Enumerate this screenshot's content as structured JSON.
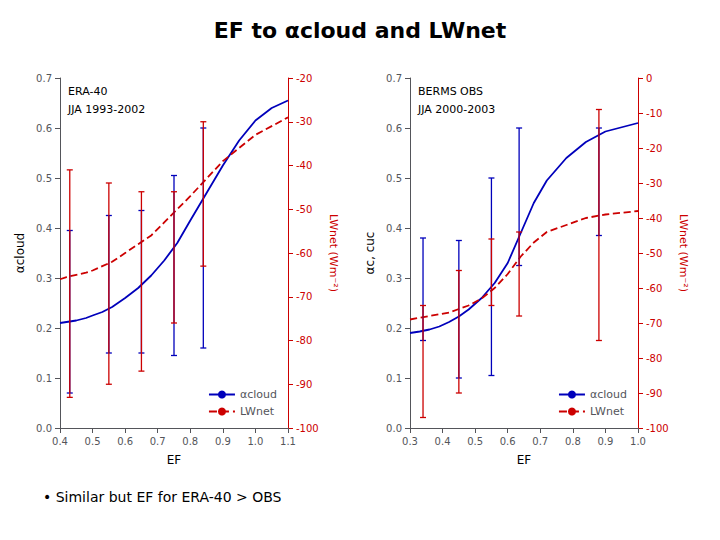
{
  "title": "EF to αcloud and LWnet",
  "annotations": [
    "• Similar but EF for ERA-40 > OBS"
  ],
  "chart_data": [
    {
      "type": "line",
      "annotations": [
        "ERA-40",
        "JJA 1993-2002"
      ],
      "xlabel": "EF",
      "ylabel": "αcloud",
      "y2label": "LWnet (Wm⁻²)",
      "xlim": [
        0.4,
        1.1
      ],
      "xticks": [
        0.4,
        0.5,
        0.6,
        0.7,
        0.8,
        0.9,
        {
          "value": 1.0,
          "label": "1.0"
        },
        1.1
      ],
      "ylim": [
        0.0,
        0.7
      ],
      "yticks": [
        {
          "value": 0,
          "label": "0.0"
        },
        0.1,
        0.2,
        0.3,
        0.4,
        0.5,
        0.6,
        0.7
      ],
      "y2lim": [
        -100,
        -20
      ],
      "y2ticks": [
        -100,
        -90,
        -80,
        -70,
        -60,
        -50,
        -40,
        -30,
        -20
      ],
      "grid": false,
      "legend": "lower right",
      "series": [
        {
          "name": "αcloud",
          "color": "#0000bb",
          "line_style": "solid",
          "x": [
            0.4,
            0.42,
            0.45,
            0.48,
            0.5,
            0.53,
            0.56,
            0.6,
            0.64,
            0.68,
            0.72,
            0.76,
            0.8,
            0.85,
            0.9,
            0.95,
            1.0,
            1.05,
            1.1
          ],
          "values": [
            0.21,
            0.212,
            0.215,
            0.22,
            0.225,
            0.232,
            0.242,
            0.26,
            0.28,
            0.305,
            0.335,
            0.37,
            0.415,
            0.47,
            0.525,
            0.575,
            0.615,
            0.64,
            0.655
          ],
          "error_bars": {
            "x": [
              0.43,
              0.55,
              0.65,
              0.75,
              0.84
            ],
            "y": [
              0.21,
              0.24,
              0.28,
              0.2,
              0.325
            ],
            "minus": [
              0.14,
              0.09,
              0.13,
              0.055,
              0.165
            ],
            "plus": [
              0.185,
              0.185,
              0.155,
              0.305,
              0.275
            ]
          }
        },
        {
          "name": "LWnet",
          "axis": "y2",
          "color": "#cc0000",
          "line_style": "dashed",
          "x": [
            0.4,
            0.42,
            0.45,
            0.48,
            0.5,
            0.53,
            0.56,
            0.6,
            0.64,
            0.68,
            0.72,
            0.76,
            0.8,
            0.85,
            0.9,
            0.95,
            1.0,
            1.05,
            1.1
          ],
          "values": [
            -66,
            -65.5,
            -65,
            -64.5,
            -64,
            -63,
            -62,
            -60,
            -58,
            -56,
            -53,
            -50,
            -47,
            -43,
            -39,
            -36,
            -33,
            -31,
            -29
          ],
          "error_bars": {
            "x": [
              0.43,
              0.55,
              0.65,
              0.75,
              0.84
            ],
            "y": [
              -67,
              -63,
              -58,
              -50,
              -47
            ],
            "minus": [
              26,
              27,
              29,
              26,
              16
            ],
            "plus": [
              26,
              19,
              12,
              4,
              17
            ]
          }
        }
      ]
    },
    {
      "type": "line",
      "annotations": [
        "BERMS OBS",
        "JJA 2000-2003"
      ],
      "xlabel": "EF",
      "ylabel": "αc, cuc",
      "y2label": "LWnet (Wm⁻²)",
      "xlim": [
        0.3,
        1.0
      ],
      "xticks": [
        0.3,
        0.4,
        0.5,
        0.6,
        0.7,
        0.8,
        0.9,
        {
          "value": 1.0,
          "label": "1.0"
        }
      ],
      "ylim": [
        0.0,
        0.7
      ],
      "yticks": [
        {
          "value": 0,
          "label": "0.0"
        },
        0.1,
        0.2,
        0.3,
        0.4,
        0.5,
        0.6,
        0.7
      ],
      "y2lim": [
        -100,
        0
      ],
      "y2ticks": [
        -100,
        -90,
        -80,
        -70,
        -60,
        -50,
        -40,
        -30,
        -20,
        -10,
        0
      ],
      "grid": false,
      "legend": "lower right",
      "series": [
        {
          "name": "αcloud",
          "color": "#0000bb",
          "line_style": "solid",
          "x": [
            0.3,
            0.33,
            0.36,
            0.39,
            0.42,
            0.45,
            0.48,
            0.52,
            0.56,
            0.6,
            0.64,
            0.68,
            0.72,
            0.78,
            0.84,
            0.9,
            1.0
          ],
          "values": [
            0.19,
            0.193,
            0.197,
            0.203,
            0.212,
            0.223,
            0.237,
            0.26,
            0.29,
            0.33,
            0.39,
            0.45,
            0.495,
            0.54,
            0.572,
            0.593,
            0.61
          ],
          "error_bars": {
            "x": [
              0.34,
              0.45,
              0.55,
              0.635,
              0.88
            ],
            "y": [
              0.34,
              0.1,
              0.105,
              0.6,
              0.6
            ],
            "minus": [
              0.165,
              0.0,
              0.0,
              0.275,
              0.215
            ],
            "plus": [
              0.04,
              0.275,
              0.395,
              0.0,
              0.0
            ]
          }
        },
        {
          "name": "LWnet",
          "axis": "y2",
          "color": "#cc0000",
          "line_style": "dashed",
          "x": [
            0.3,
            0.33,
            0.36,
            0.39,
            0.42,
            0.45,
            0.48,
            0.52,
            0.56,
            0.6,
            0.64,
            0.68,
            0.72,
            0.78,
            0.84,
            0.9,
            1.0
          ],
          "values": [
            -69,
            -68.5,
            -68,
            -67.5,
            -67,
            -66,
            -65,
            -63,
            -60,
            -56,
            -51,
            -47,
            -44,
            -42,
            -40,
            -39,
            -38
          ],
          "error_bars": {
            "x": [
              0.34,
              0.45,
              0.55,
              0.635,
              0.88
            ],
            "y": [
              -71,
              -63,
              -48,
              -47,
              -46
            ],
            "minus": [
              26,
              27,
              17,
              21,
              29
            ],
            "plus": [
              6,
              8,
              2,
              3,
              37
            ]
          }
        }
      ]
    }
  ]
}
